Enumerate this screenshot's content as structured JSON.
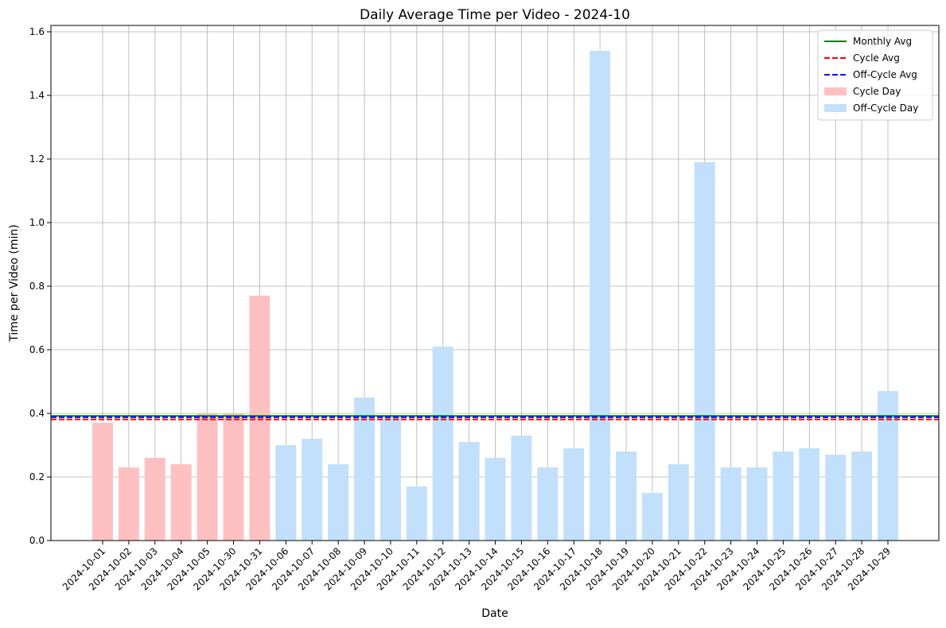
{
  "chart_data": {
    "type": "bar",
    "title": "Daily Average Time per Video - 2024-10",
    "xlabel": "Date",
    "ylabel": "Time per Video (min)",
    "ylim": [
      0,
      1.62
    ],
    "yticks": [
      "0.0",
      "0.2",
      "0.4",
      "0.6",
      "0.8",
      "1.0",
      "1.2",
      "1.4",
      "1.6"
    ],
    "ytick_values": [
      0,
      0.2,
      0.4,
      0.6,
      0.8,
      1.0,
      1.2,
      1.4,
      1.6
    ],
    "grid": true,
    "legend_position": "top-right",
    "categories": [
      "2024-10-01",
      "2024-10-02",
      "2024-10-03",
      "2024-10-04",
      "2024-10-05",
      "2024-10-30",
      "2024-10-31",
      "2024-10-06",
      "2024-10-07",
      "2024-10-08",
      "2024-10-09",
      "2024-10-10",
      "2024-10-11",
      "2024-10-12",
      "2024-10-13",
      "2024-10-14",
      "2024-10-15",
      "2024-10-16",
      "2024-10-17",
      "2024-10-18",
      "2024-10-19",
      "2024-10-20",
      "2024-10-21",
      "2024-10-22",
      "2024-10-23",
      "2024-10-24",
      "2024-10-25",
      "2024-10-26",
      "2024-10-27",
      "2024-10-28",
      "2024-10-29"
    ],
    "values": [
      0.37,
      0.23,
      0.26,
      0.24,
      0.4,
      0.4,
      0.77,
      0.3,
      0.32,
      0.24,
      0.45,
      0.39,
      0.17,
      0.61,
      0.31,
      0.26,
      0.33,
      0.23,
      0.29,
      1.54,
      0.28,
      0.15,
      0.24,
      1.19,
      0.23,
      0.23,
      0.28,
      0.29,
      0.27,
      0.28,
      0.47
    ],
    "day_type": [
      "cycle",
      "cycle",
      "cycle",
      "cycle",
      "cycle",
      "cycle",
      "cycle",
      "off",
      "off",
      "off",
      "off",
      "off",
      "off",
      "off",
      "off",
      "off",
      "off",
      "off",
      "off",
      "off",
      "off",
      "off",
      "off",
      "off",
      "off",
      "off",
      "off",
      "off",
      "off",
      "off",
      "off"
    ],
    "reference_lines": [
      {
        "name": "Monthly Avg",
        "value": 0.392,
        "color": "#008000",
        "style": "solid"
      },
      {
        "name": "Cycle Avg",
        "value": 0.381,
        "color": "#ff0000",
        "style": "dashed"
      },
      {
        "name": "Off-Cycle Avg",
        "value": 0.388,
        "color": "#0000ff",
        "style": "dashed"
      }
    ],
    "legend": [
      {
        "label": "Monthly Avg",
        "kind": "line",
        "color": "#008000",
        "style": "solid"
      },
      {
        "label": "Cycle Avg",
        "kind": "line",
        "color": "#ff0000",
        "style": "dashed"
      },
      {
        "label": "Off-Cycle Avg",
        "kind": "line",
        "color": "#0000ff",
        "style": "dashed"
      },
      {
        "label": "Cycle Day",
        "kind": "patch",
        "color": "#ffc0c2"
      },
      {
        "label": "Off-Cycle Day",
        "kind": "patch",
        "color": "#c2e0fb"
      }
    ],
    "colors": {
      "cycle": "#ffc0c2",
      "off": "#c2e0fb"
    }
  }
}
